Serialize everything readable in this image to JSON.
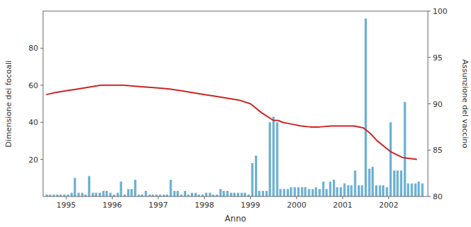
{
  "chart_data": {
    "type": "bar",
    "xlabel": "Anno",
    "ylabel": "Dimensione dei focoali",
    "y2label": "Assunzione del vaccino",
    "xlim": [
      1994.5,
      2002.85
    ],
    "xticks": [
      1995,
      1996,
      1997,
      1998,
      1999,
      2000,
      2001,
      2002
    ],
    "ylim": [
      0,
      100
    ],
    "yticks": [
      20,
      40,
      60,
      80
    ],
    "y2lim": [
      80,
      100
    ],
    "y2ticks": [
      80,
      85,
      90,
      95,
      100
    ],
    "series": [
      {
        "type": "bar",
        "color": "#6ab0d4",
        "x": [
          1994.58,
          1994.65,
          1994.73,
          1994.81,
          1994.88,
          1994.96,
          1995.04,
          1995.12,
          1995.19,
          1995.27,
          1995.35,
          1995.42,
          1995.5,
          1995.58,
          1995.65,
          1995.73,
          1995.81,
          1995.88,
          1995.96,
          1996.04,
          1996.12,
          1996.19,
          1996.27,
          1996.35,
          1996.42,
          1996.5,
          1996.58,
          1996.65,
          1996.73,
          1996.81,
          1996.88,
          1996.96,
          1997.04,
          1997.12,
          1997.19,
          1997.27,
          1997.35,
          1997.42,
          1997.5,
          1997.58,
          1997.65,
          1997.73,
          1997.81,
          1997.88,
          1997.96,
          1998.04,
          1998.12,
          1998.19,
          1998.27,
          1998.35,
          1998.42,
          1998.5,
          1998.58,
          1998.65,
          1998.73,
          1998.81,
          1998.88,
          1998.96,
          1999.04,
          1999.12,
          1999.19,
          1999.27,
          1999.35,
          1999.42,
          1999.5,
          1999.58,
          1999.65,
          1999.73,
          1999.81,
          1999.88,
          1999.96,
          2000.04,
          2000.12,
          2000.19,
          2000.27,
          2000.35,
          2000.42,
          2000.5,
          2000.58,
          2000.65,
          2000.73,
          2000.81,
          2000.88,
          2000.96,
          2001.04,
          2001.12,
          2001.19,
          2001.27,
          2001.35,
          2001.42,
          2001.5,
          2001.58,
          2001.65,
          2001.73,
          2001.81,
          2001.88,
          2001.96,
          2002.04,
          2002.12,
          2002.19,
          2002.27,
          2002.35,
          2002.42,
          2002.5,
          2002.58,
          2002.65,
          2002.73
        ],
        "values": [
          1,
          1,
          1,
          1,
          1,
          1,
          1,
          2,
          10,
          2,
          2,
          1,
          11,
          2,
          2,
          2,
          3,
          3,
          2,
          1,
          2,
          8,
          1,
          4,
          4,
          9,
          1,
          1,
          3,
          1,
          1,
          1,
          1,
          1,
          1,
          9,
          3,
          3,
          1,
          3,
          1,
          2,
          2,
          1,
          1,
          2,
          2,
          1,
          1,
          4,
          3,
          3,
          2,
          2,
          2,
          2,
          2,
          1,
          18,
          22,
          3,
          3,
          3,
          40,
          43,
          40,
          4,
          4,
          4,
          5,
          5,
          5,
          5,
          5,
          4,
          4,
          5,
          4,
          8,
          4,
          8,
          9,
          5,
          5,
          7,
          6,
          6,
          14,
          6,
          6,
          96,
          15,
          16,
          6,
          6,
          6,
          5,
          40,
          14,
          14,
          14,
          51,
          7,
          7,
          7,
          8,
          7
        ]
      },
      {
        "type": "line",
        "color": "#cc2222",
        "x": [
          1994.58,
          1994.75,
          1995.0,
          1995.25,
          1995.5,
          1995.75,
          1996.0,
          1996.25,
          1996.5,
          1996.75,
          1997.0,
          1997.25,
          1997.5,
          1997.75,
          1998.0,
          1998.25,
          1998.5,
          1998.75,
          1999.0,
          1999.25,
          1999.5,
          1999.6,
          1999.7,
          1999.9,
          2000.1,
          2000.3,
          2000.5,
          2000.75,
          2001.0,
          2001.25,
          2001.45,
          2001.6,
          2001.75,
          2001.9,
          2002.05,
          2002.3,
          2002.6
        ],
        "values": [
          55,
          56,
          57,
          58,
          59,
          60,
          60,
          60,
          59.5,
          59,
          58.5,
          58,
          57,
          56,
          55,
          54,
          53,
          52,
          50,
          45,
          41,
          41,
          40,
          39,
          38,
          37.5,
          37.5,
          38,
          38,
          38,
          37,
          34,
          30,
          27,
          24,
          21,
          20
        ]
      }
    ]
  }
}
